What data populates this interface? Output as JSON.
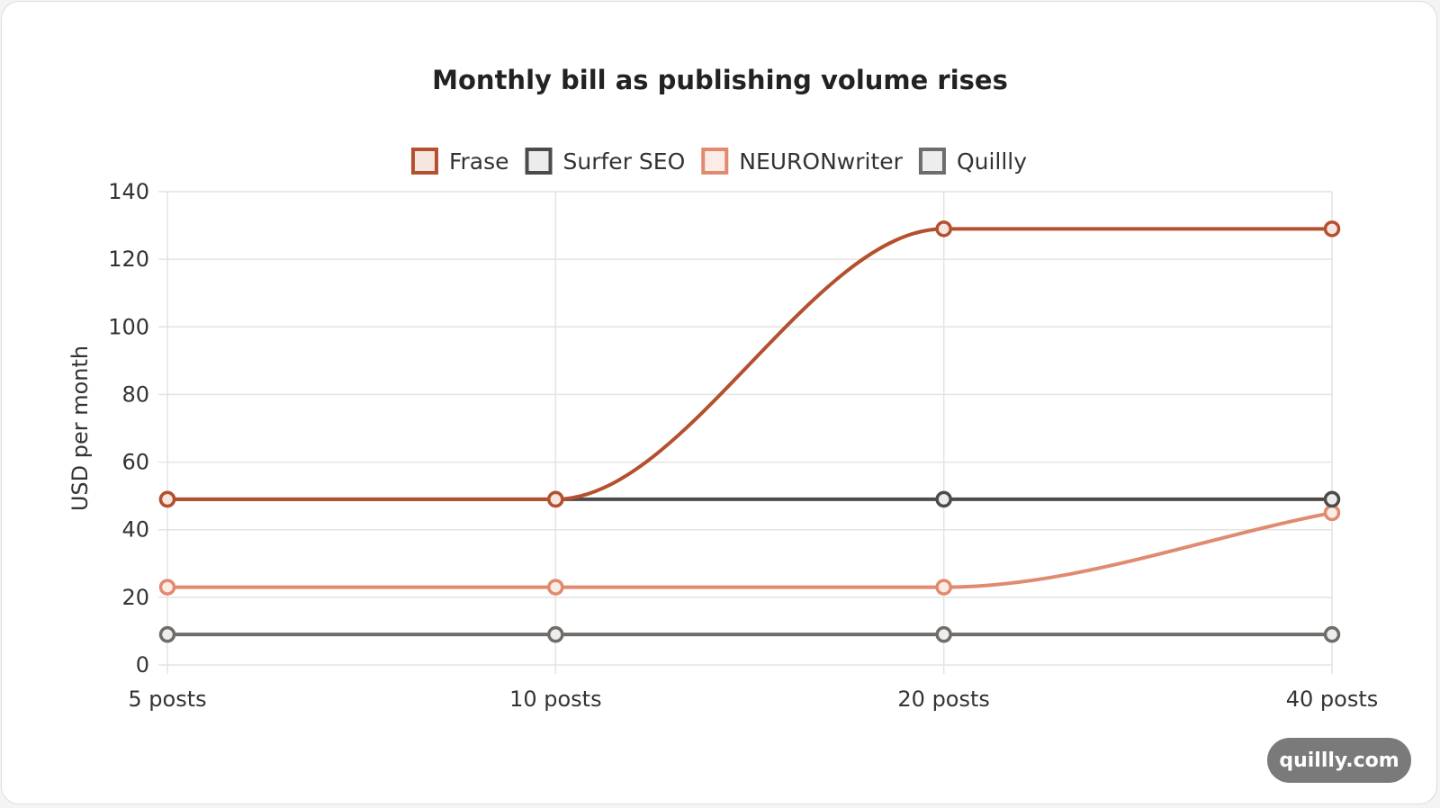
{
  "chart_data": {
    "type": "line",
    "title": "Monthly bill as publishing volume rises",
    "xlabel": "",
    "ylabel": "USD per month",
    "categories": [
      "5 posts",
      "10 posts",
      "20 posts",
      "40 posts"
    ],
    "ylim": [
      0,
      140
    ],
    "yticks": [
      0,
      20,
      40,
      60,
      80,
      100,
      120,
      140
    ],
    "grid": true,
    "legend_position": "top",
    "series": [
      {
        "name": "Frase",
        "values": [
          49,
          49,
          129,
          129
        ],
        "color": "#b5502f",
        "fill": "#f6e6e0"
      },
      {
        "name": "Surfer SEO",
        "values": [
          49,
          49,
          49,
          49
        ],
        "color": "#4d4b49",
        "fill": "#ececec"
      },
      {
        "name": "NEURONwriter",
        "values": [
          23,
          23,
          23,
          45
        ],
        "color": "#e08b70",
        "fill": "#fbece6"
      },
      {
        "name": "Quillly",
        "values": [
          9,
          9,
          9,
          9
        ],
        "color": "#706c69",
        "fill": "#ededed"
      }
    ]
  },
  "watermark": "quillly.com"
}
